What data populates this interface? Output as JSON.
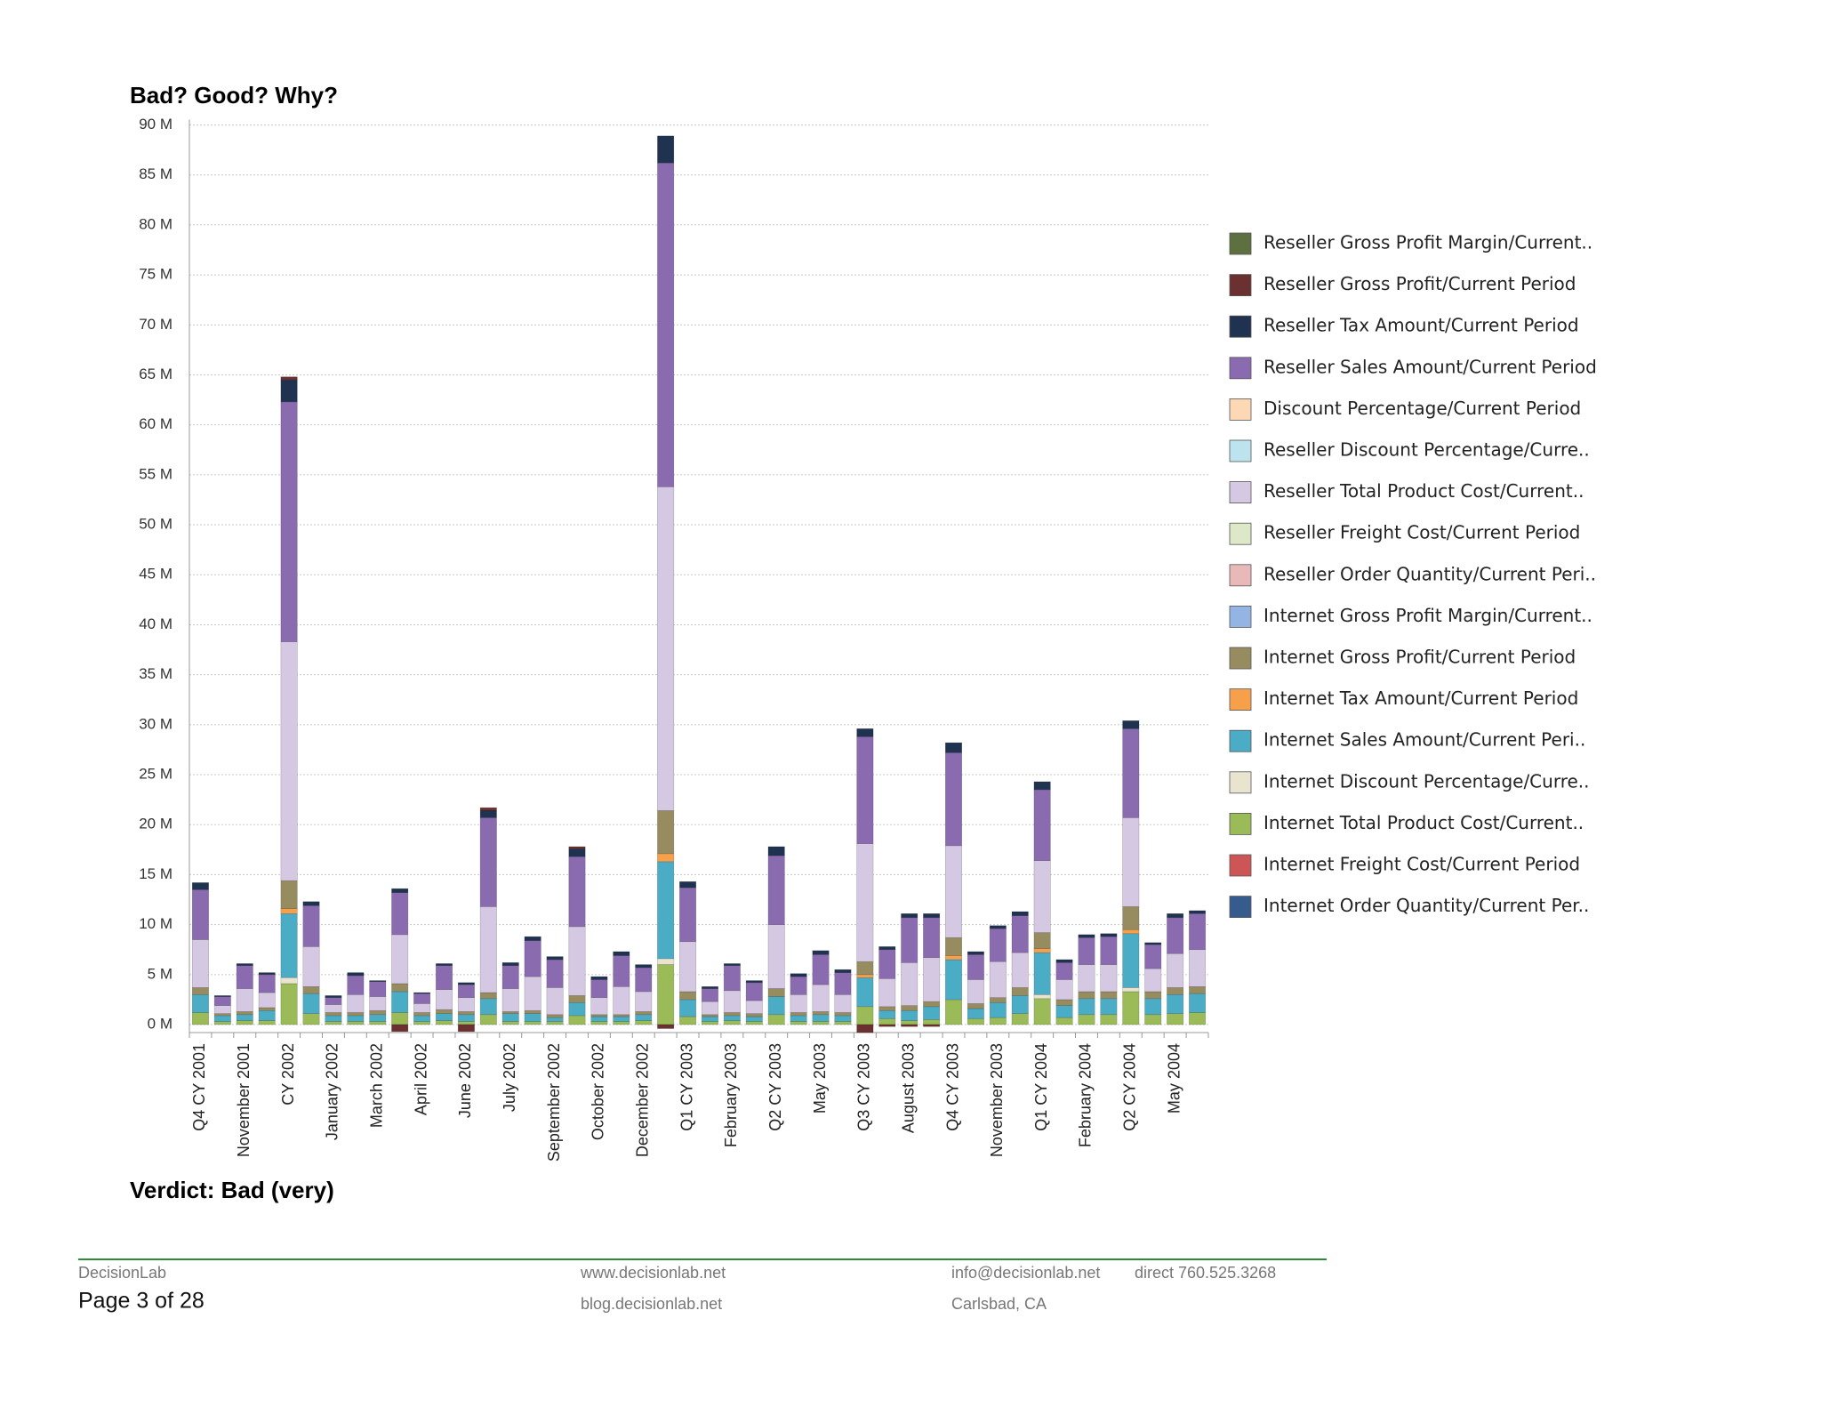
{
  "title": "Bad?  Good?  Why?",
  "verdict": "Verdict: Bad (very)",
  "footer": {
    "company": "DecisionLab",
    "page": "Page 3 of 28",
    "website": "www.decisionlab.net",
    "blog": "blog.decisionlab.net",
    "email": "info@decisionlab.net",
    "phone": "direct 760.525.3268",
    "location": "Carlsbad, CA"
  },
  "chart_data": {
    "type": "stacked_bar",
    "legend_position": "right",
    "grid": true,
    "ylim": [
      -800000,
      90000000
    ],
    "yticks": [
      {
        "value": 0,
        "label": "0 M"
      },
      {
        "value": 5000000,
        "label": "5 M"
      },
      {
        "value": 10000000,
        "label": "10 M"
      },
      {
        "value": 15000000,
        "label": "15 M"
      },
      {
        "value": 20000000,
        "label": "20 M"
      },
      {
        "value": 25000000,
        "label": "25 M"
      },
      {
        "value": 30000000,
        "label": "30 M"
      },
      {
        "value": 35000000,
        "label": "35 M"
      },
      {
        "value": 40000000,
        "label": "40 M"
      },
      {
        "value": 45000000,
        "label": "45 M"
      },
      {
        "value": 50000000,
        "label": "50 M"
      },
      {
        "value": 55000000,
        "label": "55 M"
      },
      {
        "value": 60000000,
        "label": "60 M"
      },
      {
        "value": 65000000,
        "label": "65 M"
      },
      {
        "value": 70000000,
        "label": "70 M"
      },
      {
        "value": 75000000,
        "label": "75 M"
      },
      {
        "value": 80000000,
        "label": "80 M"
      },
      {
        "value": 85000000,
        "label": "85 M"
      },
      {
        "value": 90000000,
        "label": "90 M"
      }
    ],
    "categories": [
      "Q4 CY 2001",
      null,
      "November 2001",
      null,
      "CY 2002",
      null,
      "January 2002",
      null,
      "March 2002",
      null,
      "April 2002",
      null,
      "June 2002",
      null,
      "July 2002",
      null,
      "September 2002",
      null,
      "October 2002",
      null,
      "December 2002",
      null,
      "Q1 CY 2003",
      null,
      "February 2003",
      null,
      "Q2 CY 2003",
      null,
      "May 2003",
      null,
      "Q3 CY 2003",
      null,
      "August 2003",
      null,
      "Q4 CY 2003",
      null,
      "November 2003",
      null,
      "Q1 CY 2004",
      null,
      "February 2004",
      null,
      "Q2 CY 2004",
      null,
      "May 2004",
      null
    ],
    "series": [
      {
        "name": "Reseller Gross Profit Margin/Current..",
        "color": "#5e7040",
        "values": [
          0,
          0,
          0,
          0,
          0,
          0,
          0,
          0,
          0,
          0,
          0,
          0,
          0,
          0,
          0,
          0,
          0,
          0,
          0,
          0,
          0,
          0,
          0,
          0,
          0,
          0,
          0,
          0,
          0,
          0,
          0,
          0,
          0,
          0,
          0,
          0,
          0,
          0,
          0,
          0,
          0,
          0,
          0,
          0,
          0,
          0
        ]
      },
      {
        "name": "Reseller Gross Profit/Current Period",
        "color": "#6b3030",
        "values": [
          0,
          0,
          0,
          0,
          300000,
          0,
          0,
          0,
          0,
          -700000,
          0,
          0,
          -700000,
          300000,
          0,
          0,
          0,
          200000,
          0,
          0,
          0,
          -400000,
          0,
          0,
          0,
          0,
          0,
          0,
          0,
          0,
          -800000,
          -200000,
          -200000,
          -200000,
          0,
          0,
          0,
          0,
          0,
          0,
          0,
          0,
          0,
          0,
          0,
          0
        ]
      },
      {
        "name": "Reseller Tax Amount/Current Period",
        "color": "#1f3350",
        "values": [
          700000,
          100000,
          200000,
          200000,
          2200000,
          400000,
          200000,
          300000,
          100000,
          400000,
          100000,
          200000,
          200000,
          700000,
          300000,
          400000,
          300000,
          800000,
          300000,
          400000,
          300000,
          2700000,
          600000,
          200000,
          200000,
          200000,
          900000,
          300000,
          400000,
          300000,
          800000,
          300000,
          400000,
          400000,
          1000000,
          300000,
          300000,
          400000,
          800000,
          300000,
          300000,
          300000,
          800000,
          200000,
          400000,
          300000
        ]
      },
      {
        "name": "Reseller Sales Amount/Current Period",
        "color": "#8b6bb0",
        "values": [
          5000000,
          900000,
          2300000,
          1800000,
          24000000,
          4100000,
          700000,
          1900000,
          1500000,
          4200000,
          1000000,
          2400000,
          1300000,
          8900000,
          2300000,
          3600000,
          2800000,
          7000000,
          1800000,
          3100000,
          2400000,
          32400000,
          5400000,
          1300000,
          2500000,
          1800000,
          6900000,
          1800000,
          3000000,
          2200000,
          10700000,
          2900000,
          4500000,
          4000000,
          9300000,
          2500000,
          3300000,
          3700000,
          7100000,
          1700000,
          2700000,
          2800000,
          8900000,
          2400000,
          3600000,
          3600000
        ]
      },
      {
        "name": "Discount Percentage/Current Period",
        "color": "#fcd9b4",
        "values": [
          0,
          0,
          0,
          0,
          0,
          0,
          0,
          0,
          0,
          0,
          0,
          0,
          0,
          0,
          0,
          0,
          0,
          0,
          0,
          0,
          0,
          0,
          0,
          0,
          0,
          0,
          0,
          0,
          0,
          0,
          0,
          0,
          0,
          0,
          0,
          0,
          0,
          0,
          0,
          0,
          0,
          0,
          0,
          0,
          0,
          0
        ]
      },
      {
        "name": "Reseller Discount Percentage/Curre..",
        "color": "#bde3ef",
        "values": [
          0,
          0,
          0,
          0,
          0,
          0,
          0,
          0,
          0,
          0,
          0,
          0,
          0,
          0,
          0,
          0,
          0,
          0,
          0,
          0,
          0,
          0,
          0,
          0,
          0,
          0,
          0,
          0,
          0,
          0,
          0,
          0,
          0,
          0,
          0,
          0,
          0,
          0,
          0,
          0,
          0,
          0,
          0,
          0,
          0,
          0
        ]
      },
      {
        "name": "Reseller Total Product Cost/Current..",
        "color": "#d5c8e2",
        "values": [
          4800000,
          800000,
          2300000,
          1500000,
          23900000,
          4000000,
          800000,
          1800000,
          1400000,
          4900000,
          900000,
          2000000,
          1400000,
          8600000,
          2300000,
          3400000,
          2700000,
          6900000,
          1700000,
          2800000,
          2000000,
          32400000,
          5000000,
          1300000,
          2200000,
          1300000,
          6400000,
          1800000,
          2700000,
          1800000,
          11800000,
          2800000,
          4300000,
          4400000,
          9200000,
          2400000,
          3600000,
          3500000,
          7200000,
          2000000,
          2700000,
          2700000,
          8900000,
          2300000,
          3400000,
          3700000
        ]
      },
      {
        "name": "Reseller Freight Cost/Current Period",
        "color": "#dde8c8",
        "values": [
          0,
          0,
          0,
          0,
          0,
          0,
          0,
          0,
          0,
          0,
          0,
          0,
          0,
          0,
          0,
          0,
          0,
          0,
          0,
          0,
          0,
          0,
          0,
          0,
          0,
          0,
          0,
          0,
          0,
          0,
          0,
          0,
          0,
          0,
          0,
          0,
          0,
          0,
          0,
          0,
          0,
          0,
          0,
          0,
          0,
          0
        ]
      },
      {
        "name": "Reseller Order Quantity/Current Peri..",
        "color": "#e9b8b8",
        "values": [
          0,
          0,
          0,
          0,
          0,
          0,
          0,
          0,
          0,
          0,
          0,
          0,
          0,
          0,
          0,
          0,
          0,
          0,
          0,
          0,
          0,
          0,
          0,
          0,
          0,
          0,
          0,
          0,
          0,
          0,
          0,
          0,
          0,
          0,
          0,
          0,
          0,
          0,
          0,
          0,
          0,
          0,
          0,
          0,
          0,
          0
        ]
      },
      {
        "name": "Internet Gross Profit Margin/Current..",
        "color": "#94b4e4",
        "values": [
          0,
          0,
          0,
          0,
          0,
          0,
          0,
          0,
          0,
          0,
          0,
          0,
          0,
          0,
          0,
          0,
          0,
          0,
          0,
          0,
          0,
          0,
          0,
          0,
          0,
          0,
          0,
          0,
          0,
          0,
          0,
          0,
          0,
          0,
          0,
          0,
          0,
          0,
          0,
          0,
          0,
          0,
          0,
          0,
          0,
          0
        ]
      },
      {
        "name": "Internet Gross Profit/Current Period",
        "color": "#978c60",
        "values": [
          700000,
          200000,
          300000,
          300000,
          2800000,
          700000,
          300000,
          300000,
          400000,
          800000,
          300000,
          400000,
          300000,
          600000,
          200000,
          300000,
          300000,
          700000,
          200000,
          200000,
          300000,
          4300000,
          800000,
          200000,
          300000,
          300000,
          800000,
          300000,
          300000,
          300000,
          1300000,
          400000,
          500000,
          500000,
          1800000,
          500000,
          500000,
          800000,
          1600000,
          600000,
          700000,
          700000,
          2300000,
          700000,
          700000,
          700000
        ]
      },
      {
        "name": "Internet Tax Amount/Current Period",
        "color": "#f6a04c",
        "values": [
          0,
          0,
          0,
          0,
          500000,
          0,
          0,
          0,
          0,
          0,
          0,
          0,
          0,
          0,
          0,
          0,
          0,
          0,
          0,
          0,
          0,
          800000,
          0,
          0,
          0,
          0,
          0,
          0,
          0,
          0,
          300000,
          0,
          0,
          0,
          400000,
          0,
          0,
          0,
          400000,
          0,
          0,
          0,
          400000,
          0,
          0,
          0
        ]
      },
      {
        "name": "Internet Sales Amount/Current Peri..",
        "color": "#4bacc6",
        "values": [
          1800000,
          600000,
          600000,
          1000000,
          6400000,
          2000000,
          600000,
          600000,
          700000,
          2100000,
          600000,
          700000,
          700000,
          1600000,
          800000,
          800000,
          400000,
          1300000,
          500000,
          500000,
          600000,
          9700000,
          1700000,
          500000,
          500000,
          500000,
          1800000,
          600000,
          700000,
          600000,
          2900000,
          800000,
          1000000,
          1300000,
          4000000,
          1000000,
          1500000,
          1800000,
          4200000,
          1200000,
          1600000,
          1600000,
          5400000,
          1600000,
          1900000,
          1900000
        ]
      },
      {
        "name": "Internet Discount Percentage/Curre..",
        "color": "#e8e4d0",
        "values": [
          0,
          0,
          0,
          0,
          600000,
          0,
          0,
          0,
          0,
          0,
          0,
          0,
          0,
          0,
          0,
          0,
          0,
          0,
          0,
          0,
          0,
          600000,
          0,
          0,
          0,
          0,
          0,
          0,
          0,
          0,
          0,
          0,
          0,
          0,
          0,
          0,
          0,
          0,
          400000,
          0,
          0,
          0,
          400000,
          0,
          0,
          0
        ]
      },
      {
        "name": "Internet Total Product Cost/Current..",
        "color": "#9bbb59",
        "values": [
          1200000,
          300000,
          400000,
          400000,
          4100000,
          1100000,
          300000,
          300000,
          300000,
          1200000,
          300000,
          400000,
          300000,
          1000000,
          300000,
          300000,
          300000,
          900000,
          300000,
          300000,
          400000,
          6000000,
          800000,
          300000,
          400000,
          300000,
          1000000,
          300000,
          300000,
          300000,
          1800000,
          600000,
          400000,
          500000,
          2500000,
          600000,
          700000,
          1100000,
          2600000,
          700000,
          1000000,
          1000000,
          3300000,
          1000000,
          1100000,
          1200000
        ]
      },
      {
        "name": "Internet Freight Cost/Current Period",
        "color": "#cd5555",
        "values": [
          0,
          0,
          0,
          0,
          0,
          0,
          0,
          0,
          0,
          0,
          0,
          0,
          0,
          0,
          0,
          0,
          0,
          0,
          0,
          0,
          0,
          0,
          0,
          0,
          0,
          0,
          0,
          0,
          0,
          0,
          0,
          0,
          0,
          0,
          0,
          0,
          0,
          0,
          0,
          0,
          0,
          0,
          0,
          0,
          0,
          0
        ]
      },
      {
        "name": "Internet Order Quantity/Current Per..",
        "color": "#365c8e",
        "values": [
          0,
          0,
          0,
          0,
          0,
          0,
          0,
          0,
          0,
          0,
          0,
          0,
          0,
          0,
          0,
          0,
          0,
          0,
          0,
          0,
          0,
          0,
          0,
          0,
          0,
          0,
          0,
          0,
          0,
          0,
          0,
          0,
          0,
          0,
          0,
          0,
          0,
          0,
          0,
          0,
          0,
          0,
          0,
          0,
          0,
          0
        ]
      }
    ]
  }
}
